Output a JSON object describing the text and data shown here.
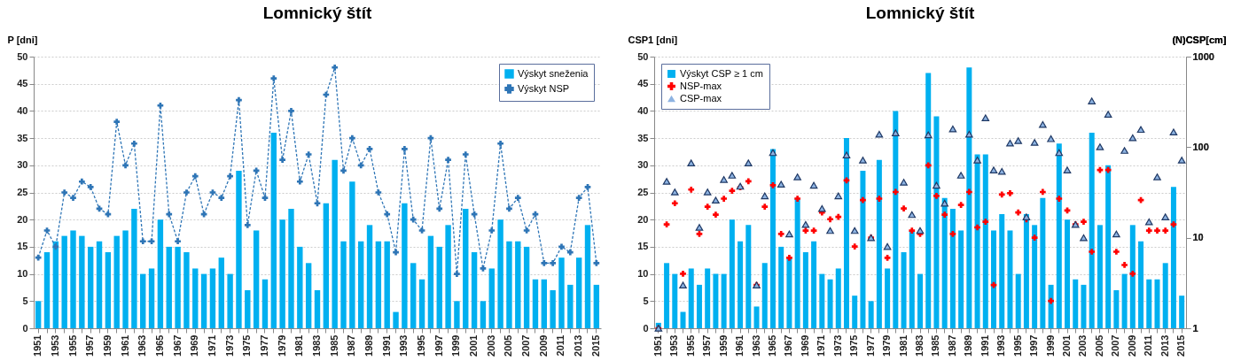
{
  "chart_data": [
    {
      "type": "bar",
      "title": "Lomnický štít",
      "ylabel": "P [dni]",
      "categories": [
        "1951",
        null,
        "1953",
        null,
        "1955",
        null,
        "1957",
        null,
        "1959",
        null,
        "1961",
        null,
        "1963",
        null,
        "1965",
        null,
        "1967",
        null,
        "1969",
        null,
        "1971",
        null,
        "1973",
        null,
        "1975",
        null,
        "1977",
        null,
        "1979",
        null,
        "1981",
        null,
        "1983",
        null,
        "1985",
        null,
        "1987",
        null,
        "1989",
        null,
        "1991",
        null,
        "1993",
        null,
        "1995",
        null,
        "1997",
        null,
        "1999",
        null,
        "2001",
        null,
        "2003",
        null,
        "2005",
        null,
        "2007",
        null,
        "2009",
        null,
        "2011",
        null,
        "2013",
        null,
        "2015"
      ],
      "series": [
        {
          "name": "Výskyt sneženia",
          "color": "#00b0f0",
          "values": [
            5,
            14,
            16,
            17,
            18,
            17,
            15,
            16,
            14,
            17,
            18,
            22,
            10,
            11,
            20,
            15,
            15,
            14,
            11,
            10,
            11,
            13,
            10,
            29,
            7,
            18,
            9,
            36,
            20,
            22,
            15,
            12,
            7,
            23,
            31,
            16,
            27,
            16,
            19,
            16,
            16,
            3,
            23,
            12,
            9,
            17,
            15,
            19,
            5,
            22,
            14,
            5,
            11,
            20,
            16,
            16,
            15,
            9,
            9,
            7,
            13,
            8,
            13,
            19,
            8
          ]
        },
        {
          "name": "Výskyt NSP",
          "type": "line",
          "color": "#2e75b6",
          "marker": "cross",
          "line_style": "dashed",
          "values": [
            13,
            18,
            15,
            25,
            24,
            27,
            26,
            22,
            21,
            38,
            30,
            34,
            16,
            16,
            41,
            21,
            16,
            25,
            28,
            21,
            25,
            24,
            28,
            42,
            19,
            29,
            24,
            46,
            31,
            40,
            27,
            32,
            23,
            43,
            48,
            29,
            35,
            30,
            33,
            25,
            21,
            14,
            33,
            20,
            18,
            35,
            22,
            31,
            10,
            32,
            21,
            11,
            18,
            34,
            22,
            24,
            18,
            21,
            12,
            12,
            15,
            14,
            24,
            26,
            12
          ]
        }
      ],
      "ylim": [
        0,
        50
      ],
      "yticks": [
        0,
        5,
        10,
        15,
        20,
        25,
        30,
        35,
        40,
        45,
        50
      ],
      "grid": "y",
      "legend": "top right"
    },
    {
      "type": "bar",
      "title": "Lomnický štít",
      "ylabel": "CSP1 [dni]",
      "y2label": "(N)CSP[cm]",
      "categories": [
        "1951",
        null,
        "1953",
        null,
        "1955",
        null,
        "1957",
        null,
        "1959",
        null,
        "1961",
        null,
        "1963",
        null,
        "1965",
        null,
        "1967",
        null,
        "1969",
        null,
        "1971",
        null,
        "1973",
        null,
        "1975",
        null,
        "1977",
        null,
        "1979",
        null,
        "1981",
        null,
        "1983",
        null,
        "1985",
        null,
        "1987",
        null,
        "1989",
        null,
        "1991",
        null,
        "1993",
        null,
        "1995",
        null,
        "1997",
        null,
        "1999",
        null,
        "2001",
        null,
        "2003",
        null,
        "2005",
        null,
        "2007",
        null,
        "2009",
        null,
        "2011",
        null,
        "2013",
        null,
        "2015"
      ],
      "series": [
        {
          "name": "Výskyt CSP ≥ 1 cm",
          "color": "#00b0f0",
          "values": [
            1,
            12,
            10,
            3,
            11,
            8,
            11,
            10,
            10,
            20,
            16,
            19,
            4,
            12,
            33,
            15,
            13,
            24,
            14,
            16,
            10,
            9,
            11,
            35,
            6,
            29,
            5,
            31,
            11,
            40,
            14,
            18,
            10,
            47,
            39,
            24,
            22,
            18,
            48,
            32,
            32,
            18,
            21,
            18,
            10,
            21,
            19,
            24,
            8,
            34,
            20,
            9,
            8,
            36,
            19,
            30,
            7,
            10,
            19,
            16,
            9,
            9,
            12,
            26,
            6
          ]
        },
        {
          "name": "NSP-max",
          "type": "scatter",
          "axis": "y2",
          "marker": "cross",
          "color": "#ff0000",
          "values": [
            1,
            14,
            24,
            4,
            34,
            11,
            22,
            18,
            27,
            33,
            36,
            42,
            3,
            22,
            38,
            11,
            6,
            27,
            12,
            12,
            19,
            16,
            17,
            43,
            8,
            26,
            10,
            27,
            6,
            32,
            21,
            12,
            11,
            63,
            29,
            18,
            11,
            23,
            32,
            13,
            15,
            3,
            30,
            31,
            19,
            16,
            10,
            32,
            2,
            27,
            20,
            14,
            15,
            7,
            56,
            56,
            7,
            5,
            4,
            26,
            12,
            12,
            12,
            14,
            null
          ]
        },
        {
          "name": "CSP-max",
          "type": "scatter",
          "axis": "y2",
          "marker": "triangle",
          "color": "#8db3e2",
          "values": [
            1,
            42,
            32,
            3,
            67,
            13,
            32,
            26,
            44,
            49,
            37,
            67,
            3,
            29,
            87,
            39,
            11,
            47,
            14,
            38,
            21,
            12,
            29,
            82,
            12,
            72,
            10,
            139,
            8,
            144,
            41,
            18,
            12,
            137,
            38,
            24,
            159,
            49,
            139,
            72,
            211,
            56,
            54,
            111,
            118,
            17,
            113,
            178,
            124,
            87,
            56,
            14,
            10,
            324,
            101,
            231,
            11,
            92,
            127,
            157,
            15,
            47,
            17,
            147,
            72
          ]
        }
      ],
      "ylim": [
        0,
        50
      ],
      "yticks": [
        0,
        5,
        10,
        15,
        20,
        25,
        30,
        35,
        40,
        45,
        50
      ],
      "y2lim": [
        1,
        1000
      ],
      "y2ticks": [
        1,
        10,
        100,
        1000
      ],
      "log": "y2",
      "grid": "y",
      "legend": "top left"
    }
  ]
}
